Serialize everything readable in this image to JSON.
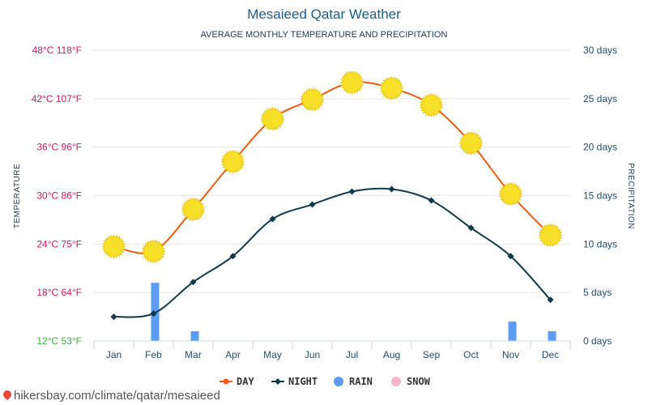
{
  "chart_data": {
    "type": "line",
    "title": "Mesaieed Qatar Weather",
    "subtitle": "AVERAGE MONTHLY TEMPERATURE AND PRECIPITATION",
    "ylabel_left": "TEMPERATURE",
    "ylabel_right": "PRECIPITATION",
    "categories": [
      "Jan",
      "Feb",
      "Mar",
      "Apr",
      "May",
      "Jun",
      "Jul",
      "Aug",
      "Sep",
      "Oct",
      "Nov",
      "Dec"
    ],
    "y_left_ticks": [
      "12°C 53°F",
      "18°C 64°F",
      "24°C 75°F",
      "30°C 86°F",
      "36°C 96°F",
      "42°C 107°F",
      "48°C 118°F"
    ],
    "y_left_tick_values": [
      12,
      18,
      24,
      30,
      36,
      42,
      48
    ],
    "y_left_tick_colors": [
      "#3cb43c",
      "#d6195c",
      "#d6195c",
      "#d6195c",
      "#d6195c",
      "#d6195c",
      "#d6195c"
    ],
    "y_right_ticks": [
      "0 days",
      "5 days",
      "10 days",
      "15 days",
      "20 days",
      "25 days",
      "30 days"
    ],
    "y_right_tick_values": [
      0,
      5,
      10,
      15,
      20,
      25,
      30
    ],
    "ylim_left": [
      12,
      48
    ],
    "ylim_right": [
      0,
      30
    ],
    "series": [
      {
        "name": "DAY",
        "color": "#f25b0f",
        "values": [
          23.7,
          23.1,
          28.3,
          34.2,
          39.5,
          41.9,
          44.0,
          43.3,
          41.2,
          36.5,
          30.2,
          25.1
        ]
      },
      {
        "name": "NIGHT",
        "color": "#0e3a4e",
        "values": [
          15.0,
          15.4,
          19.3,
          22.5,
          27.1,
          28.9,
          30.5,
          30.8,
          29.4,
          26.0,
          22.5,
          17.1
        ]
      },
      {
        "name": "RAIN",
        "color": "#5b9cf5",
        "values": [
          0,
          6,
          1,
          0,
          0,
          0,
          0,
          0,
          0,
          0,
          2,
          1
        ]
      },
      {
        "name": "SNOW",
        "color": "#f7b6c8",
        "values": [
          0,
          0,
          0,
          0,
          0,
          0,
          0,
          0,
          0,
          0,
          0,
          0
        ]
      }
    ],
    "legend": [
      "DAY",
      "NIGHT",
      "RAIN",
      "SNOW"
    ],
    "legend_position": "bottom",
    "grid": true
  },
  "colors": {
    "sun_fill": "#f7e027",
    "sun_stroke": "#f1c40f",
    "grid": "#e6e6e6"
  },
  "footer": {
    "source_text": "hikersbay.com/climate/qatar/mesaieed"
  }
}
